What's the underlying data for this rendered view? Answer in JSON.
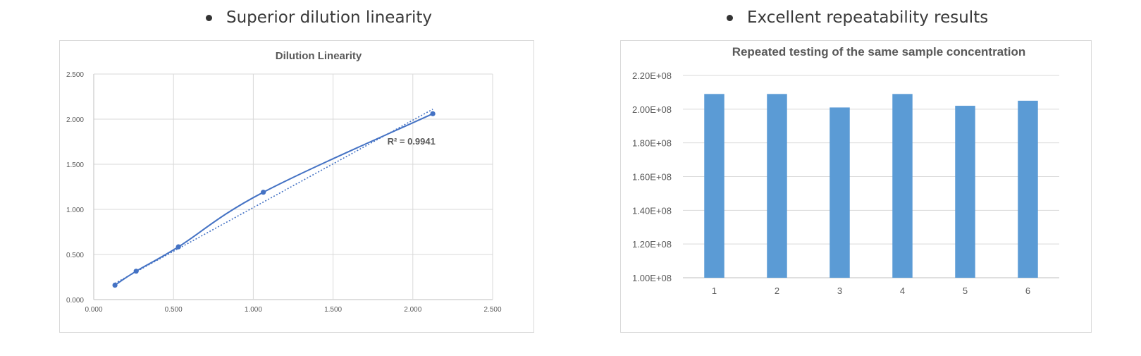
{
  "headings": {
    "left": "Superior dilution linearity",
    "right": "Excellent repeatability results"
  },
  "chart_data": [
    {
      "type": "scatter",
      "title": "Dilution Linearity",
      "xlabel": "",
      "ylabel": "",
      "xlim": [
        0,
        2.5
      ],
      "ylim": [
        0,
        2.5
      ],
      "x_ticks": [
        "0.000",
        "0.500",
        "1.000",
        "1.500",
        "2.000",
        "2.500"
      ],
      "y_ticks": [
        "0.000",
        "0.500",
        "1.000",
        "1.500",
        "2.000",
        "2.500"
      ],
      "grid": true,
      "series": [
        {
          "x": [
            0.133,
            0.266,
            0.531,
            1.063,
            2.125
          ],
          "y": [
            0.16,
            0.315,
            0.585,
            1.19,
            2.06
          ],
          "line": "smooth",
          "color": "#4472c4"
        }
      ],
      "trendline": {
        "type": "linear",
        "style": "dotted",
        "color": "#4472c4",
        "x": [
          0.133,
          2.125
        ],
        "y": [
          0.18,
          2.11
        ]
      },
      "annotation": "R² = 0.9941"
    },
    {
      "type": "bar",
      "title": "Repeated testing of the same sample concentration",
      "xlabel": "",
      "ylabel": "",
      "categories": [
        "1",
        "2",
        "3",
        "4",
        "5",
        "6"
      ],
      "values": [
        209000000,
        209000000,
        201000000,
        209000000,
        202000000,
        205000000
      ],
      "ylim": [
        100000000,
        220000000
      ],
      "y_ticks": [
        "1.00E+08",
        "1.20E+08",
        "1.40E+08",
        "1.60E+08",
        "1.80E+08",
        "2.00E+08",
        "2.20E+08"
      ],
      "grid": true,
      "color": "#5b9bd5"
    }
  ]
}
